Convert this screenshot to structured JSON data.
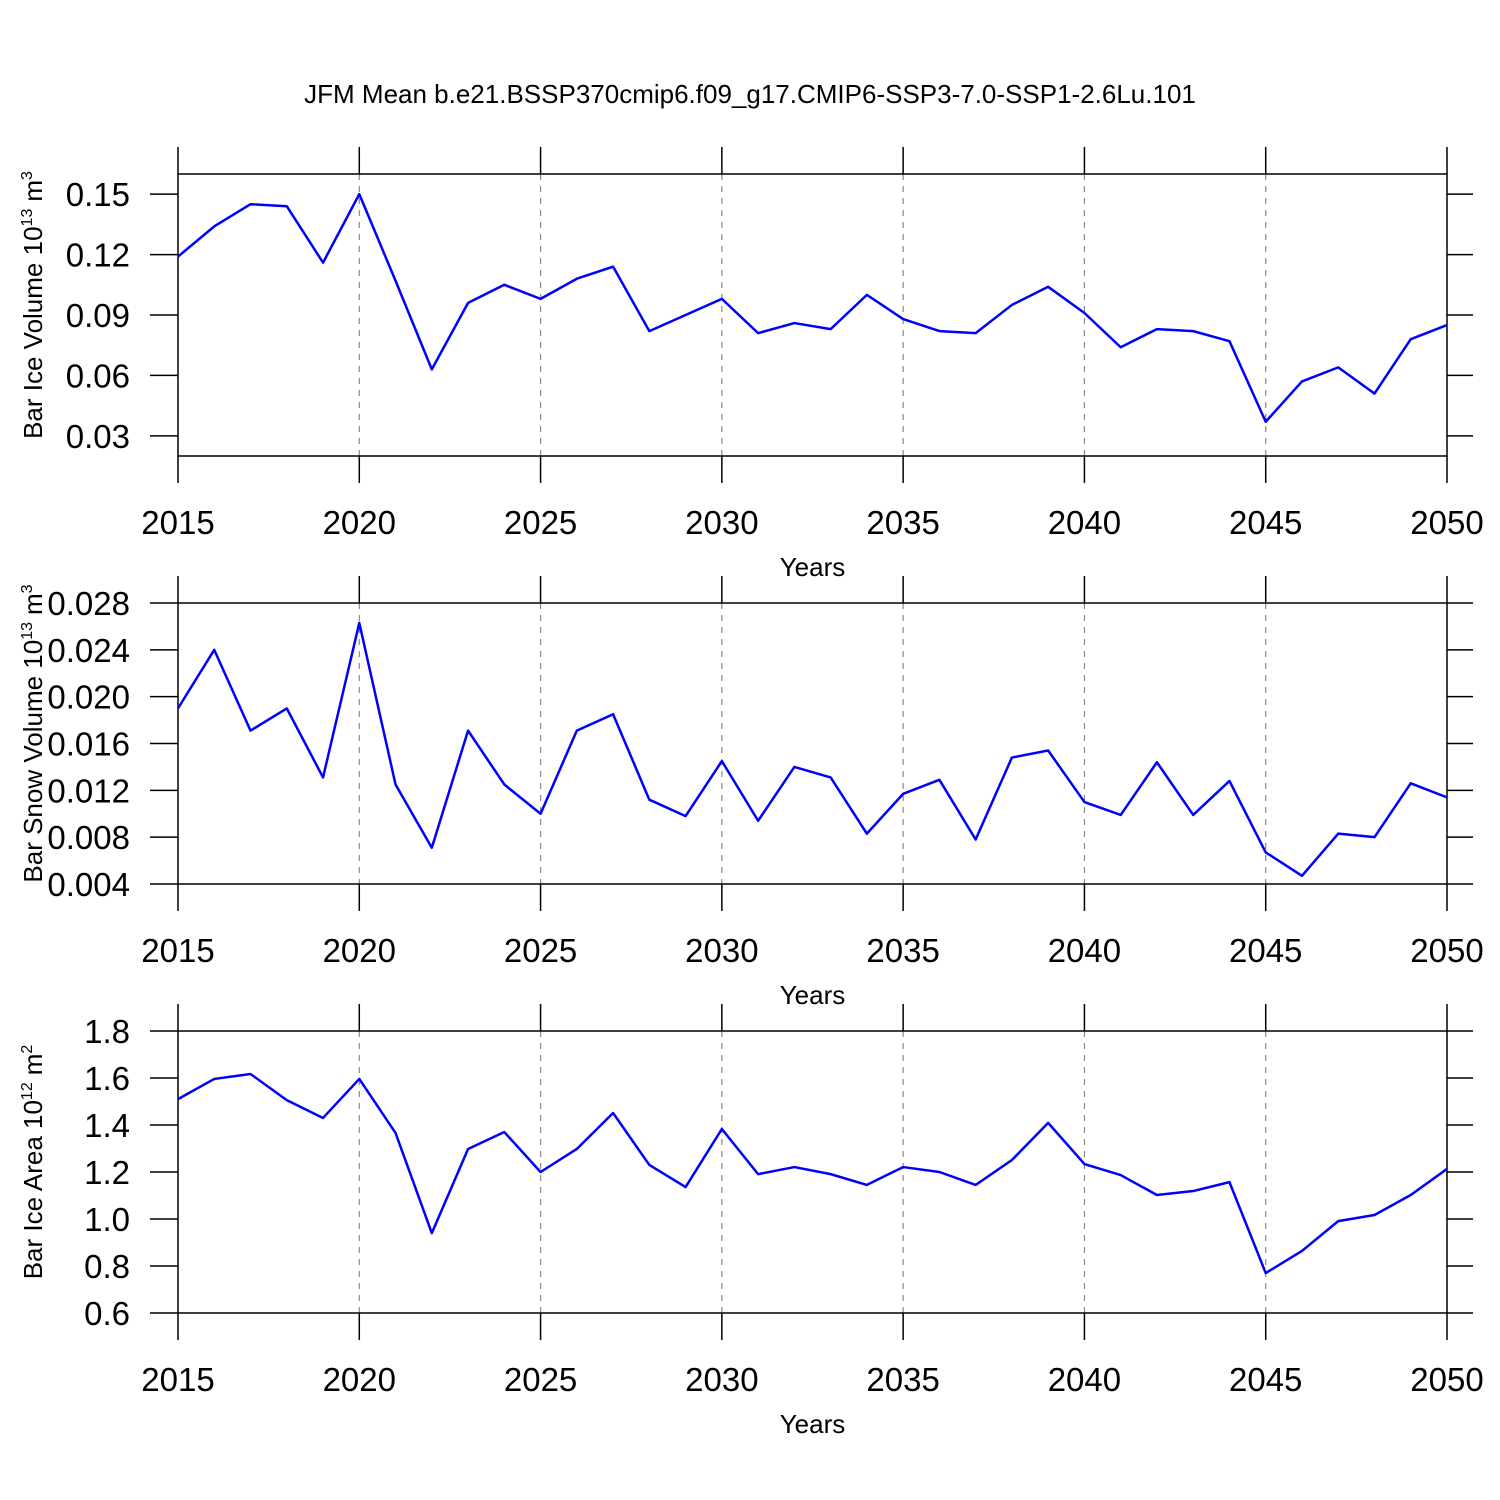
{
  "title": "JFM Mean b.e21.BSSP370cmip6.f09_g17.CMIP6-SSP3-7.0-SSP1-2.6Lu.101",
  "chart_data": [
    {
      "type": "line",
      "xlabel": "Years",
      "ylabel": {
        "text": "Bar Ice Volume 10",
        "exponent": "13",
        "unit": "m",
        "unit_exponent": "3"
      },
      "x": [
        2015,
        2016,
        2017,
        2018,
        2019,
        2020,
        2021,
        2022,
        2023,
        2024,
        2025,
        2026,
        2027,
        2028,
        2029,
        2030,
        2031,
        2032,
        2033,
        2034,
        2035,
        2036,
        2037,
        2038,
        2039,
        2040,
        2041,
        2042,
        2043,
        2044,
        2045,
        2046,
        2047,
        2048,
        2049,
        2050
      ],
      "values": [
        0.119,
        0.134,
        0.145,
        0.144,
        0.116,
        0.15,
        0.107,
        0.063,
        0.096,
        0.105,
        0.098,
        0.108,
        0.114,
        0.082,
        0.09,
        0.098,
        0.081,
        0.086,
        0.083,
        0.1,
        0.088,
        0.082,
        0.081,
        0.095,
        0.104,
        0.091,
        0.074,
        0.083,
        0.082,
        0.077,
        0.037,
        0.057,
        0.064,
        0.051,
        0.078,
        0.085
      ],
      "color": "#0000ff",
      "xlim": [
        2015,
        2050
      ],
      "xticks": [
        2015,
        2020,
        2025,
        2030,
        2035,
        2040,
        2045,
        2050
      ],
      "ylim": [
        0.02,
        0.16
      ],
      "yticks": [
        0.03,
        0.06,
        0.09,
        0.12,
        0.15
      ],
      "xgrid": true
    },
    {
      "type": "line",
      "xlabel": "Years",
      "ylabel": {
        "text": "Bar Snow Volume 10",
        "exponent": "13",
        "unit": "m",
        "unit_exponent": "3"
      },
      "x": [
        2015,
        2016,
        2017,
        2018,
        2019,
        2020,
        2021,
        2022,
        2023,
        2024,
        2025,
        2026,
        2027,
        2028,
        2029,
        2030,
        2031,
        2032,
        2033,
        2034,
        2035,
        2036,
        2037,
        2038,
        2039,
        2040,
        2041,
        2042,
        2043,
        2044,
        2045,
        2046,
        2047,
        2048,
        2049,
        2050
      ],
      "values": [
        0.019,
        0.024,
        0.0171,
        0.019,
        0.0131,
        0.0263,
        0.0125,
        0.0071,
        0.0171,
        0.0125,
        0.01,
        0.0171,
        0.0185,
        0.0112,
        0.0098,
        0.0145,
        0.0094,
        0.014,
        0.0131,
        0.0083,
        0.0117,
        0.0129,
        0.0078,
        0.0148,
        0.0154,
        0.011,
        0.0099,
        0.0144,
        0.0099,
        0.0128,
        0.0067,
        0.0047,
        0.0083,
        0.008,
        0.0126,
        0.0114
      ],
      "color": "#0000ff",
      "xlim": [
        2015,
        2050
      ],
      "xticks": [
        2015,
        2020,
        2025,
        2030,
        2035,
        2040,
        2045,
        2050
      ],
      "ylim": [
        0.004,
        0.028
      ],
      "yticks": [
        0.004,
        0.008,
        0.012,
        0.016,
        {
          "value": 0.02,
          "label": "0.020"
        },
        0.024,
        0.028
      ],
      "xgrid": true
    },
    {
      "type": "line",
      "xlabel": "Years",
      "ylabel": {
        "text": "Bar Ice Area 10",
        "exponent": "12",
        "unit": "m",
        "unit_exponent": "2"
      },
      "x": [
        2015,
        2016,
        2017,
        2018,
        2019,
        2020,
        2021,
        2022,
        2023,
        2024,
        2025,
        2026,
        2027,
        2028,
        2029,
        2030,
        2031,
        2032,
        2033,
        2034,
        2035,
        2036,
        2037,
        2038,
        2039,
        2040,
        2041,
        2042,
        2043,
        2044,
        2045,
        2046,
        2047,
        2048,
        2049,
        2050
      ],
      "values": [
        1.51,
        1.596,
        1.617,
        1.506,
        1.43,
        1.596,
        1.366,
        0.94,
        1.298,
        1.37,
        1.2,
        1.298,
        1.451,
        1.23,
        1.136,
        1.383,
        1.191,
        1.221,
        1.191,
        1.145,
        1.221,
        1.2,
        1.145,
        1.251,
        1.409,
        1.234,
        1.187,
        1.102,
        1.119,
        1.157,
        0.77,
        0.864,
        0.991,
        1.017,
        1.102,
        1.213
      ],
      "color": "#0000ff",
      "xlim": [
        2015,
        2050
      ],
      "xticks": [
        2015,
        2020,
        2025,
        2030,
        2035,
        2040,
        2045,
        2050
      ],
      "ylim": [
        0.6,
        1.8
      ],
      "yticks": [
        0.6,
        0.8,
        {
          "value": 1,
          "label": "1.0"
        },
        1.2,
        1.4,
        1.6,
        1.8
      ],
      "xgrid": true
    }
  ]
}
